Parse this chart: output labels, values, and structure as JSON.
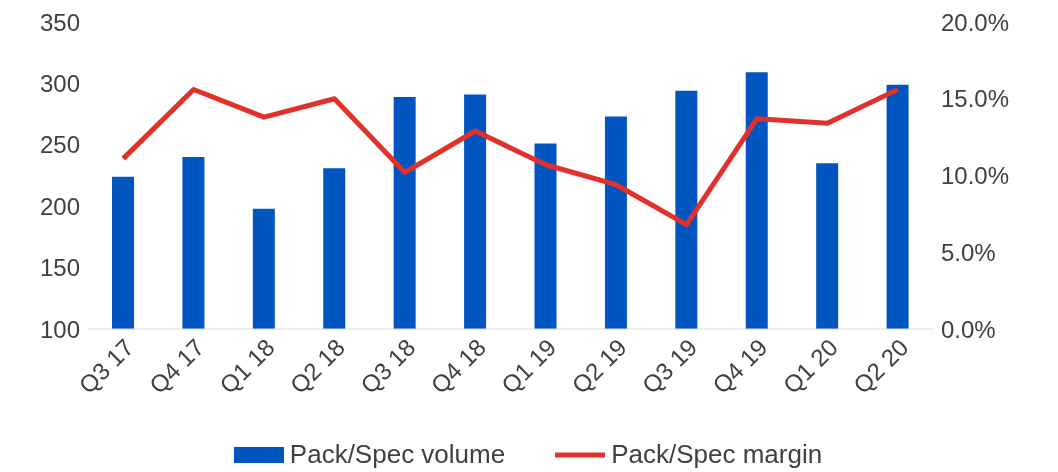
{
  "chart_data": {
    "type": "bar",
    "categories": [
      "Q3 17",
      "Q4 17",
      "Q1 18",
      "Q2 18",
      "Q3 18",
      "Q4 18",
      "Q1 19",
      "Q2 19",
      "Q3 19",
      "Q4 19",
      "Q1 20",
      "Q2 20"
    ],
    "series": [
      {
        "name": "Pack/Spec volume",
        "color": "#0055c0",
        "values": [
          224,
          240,
          198,
          231,
          289,
          291,
          251,
          273,
          294,
          309,
          235,
          299
        ]
      },
      {
        "name": "Pack/Spec margin",
        "type": "line",
        "axis": "y2",
        "color": "#e0312a",
        "values": [
          11.1,
          15.6,
          13.8,
          15.0,
          10.2,
          12.9,
          10.7,
          9.4,
          6.8,
          13.7,
          13.4,
          15.6
        ]
      }
    ],
    "ylim": [
      100,
      350
    ],
    "yticks": [
      100,
      150,
      200,
      250,
      300,
      350
    ],
    "y2lim": [
      0,
      20
    ],
    "y2ticks": [
      {
        "value": 0,
        "label": "0.0%"
      },
      {
        "value": 5,
        "label": "5.0%"
      },
      {
        "value": 10,
        "label": "10.0%"
      },
      {
        "value": 15,
        "label": "15.0%"
      },
      {
        "value": 20,
        "label": "20.0%"
      }
    ],
    "grid": false,
    "legend": "bottom",
    "marker": "none",
    "line_style": "solid"
  }
}
